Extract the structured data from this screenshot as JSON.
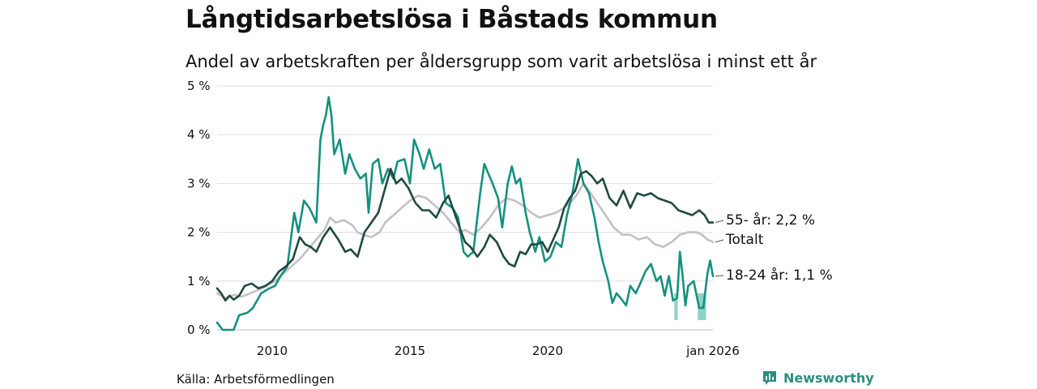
{
  "header": {
    "title": "Långtidsarbetslösa i Båstads kommun",
    "subtitle": "Andel av arbetskraften per åldersgrupp som varit arbetslösa i minst ett år"
  },
  "footer": {
    "source": "Källa: Arbetsförmedlingen",
    "brand": "Newsworthy"
  },
  "colors": {
    "age55": "#1f4a3f",
    "total": "#c4bfcb",
    "age1824": "#14917f",
    "age1824_band": "#8fd1c6",
    "grid": "#dddddd",
    "brand": "#2b8e80"
  },
  "chart_data": {
    "type": "line",
    "title": "Långtidsarbetslösa i Båstads kommun",
    "subtitle": "Andel av arbetskraften per åldersgrupp som varit arbetslösa i minst ett år",
    "xlabel": "",
    "ylabel": "",
    "x_range": [
      2008.0,
      2026.0
    ],
    "ylim": [
      0,
      5
    ],
    "y_ticks": [
      0,
      1,
      2,
      3,
      4,
      5
    ],
    "y_tick_labels": [
      "0 %",
      "1 %",
      "2 %",
      "3 %",
      "4 %",
      "5 %"
    ],
    "x_ticks": [
      2010,
      2015,
      2020,
      2026.0
    ],
    "x_tick_labels": [
      "2010",
      "2015",
      "2020",
      "jan 2026"
    ],
    "grid": true,
    "series": [
      {
        "name": "Totalt",
        "label": "Totalt",
        "color": "#c4bfcb",
        "points": [
          [
            2008.0,
            0.75
          ],
          [
            2008.3,
            0.65
          ],
          [
            2008.6,
            0.72
          ],
          [
            2008.9,
            0.68
          ],
          [
            2009.2,
            0.75
          ],
          [
            2009.5,
            0.82
          ],
          [
            2009.8,
            0.9
          ],
          [
            2010.1,
            1.0
          ],
          [
            2010.4,
            1.15
          ],
          [
            2010.7,
            1.3
          ],
          [
            2011.0,
            1.45
          ],
          [
            2011.3,
            1.65
          ],
          [
            2011.6,
            1.85
          ],
          [
            2011.9,
            2.05
          ],
          [
            2012.1,
            2.3
          ],
          [
            2012.3,
            2.2
          ],
          [
            2012.6,
            2.25
          ],
          [
            2012.9,
            2.15
          ],
          [
            2013.1,
            2.0
          ],
          [
            2013.3,
            1.95
          ],
          [
            2013.6,
            1.9
          ],
          [
            2013.9,
            2.0
          ],
          [
            2014.1,
            2.2
          ],
          [
            2014.4,
            2.35
          ],
          [
            2014.7,
            2.5
          ],
          [
            2015.0,
            2.65
          ],
          [
            2015.3,
            2.75
          ],
          [
            2015.6,
            2.7
          ],
          [
            2015.9,
            2.55
          ],
          [
            2016.2,
            2.4
          ],
          [
            2016.5,
            2.2
          ],
          [
            2016.8,
            2.0
          ],
          [
            2017.0,
            2.05
          ],
          [
            2017.3,
            1.95
          ],
          [
            2017.6,
            2.1
          ],
          [
            2017.9,
            2.3
          ],
          [
            2018.2,
            2.55
          ],
          [
            2018.5,
            2.7
          ],
          [
            2018.8,
            2.65
          ],
          [
            2019.1,
            2.55
          ],
          [
            2019.4,
            2.4
          ],
          [
            2019.7,
            2.3
          ],
          [
            2020.0,
            2.35
          ],
          [
            2020.3,
            2.4
          ],
          [
            2020.6,
            2.5
          ],
          [
            2020.9,
            2.65
          ],
          [
            2021.1,
            2.8
          ],
          [
            2021.3,
            3.0
          ],
          [
            2021.5,
            2.85
          ],
          [
            2021.8,
            2.6
          ],
          [
            2022.1,
            2.35
          ],
          [
            2022.4,
            2.1
          ],
          [
            2022.7,
            1.95
          ],
          [
            2023.0,
            1.95
          ],
          [
            2023.3,
            1.85
          ],
          [
            2023.6,
            1.9
          ],
          [
            2023.9,
            1.75
          ],
          [
            2024.2,
            1.7
          ],
          [
            2024.5,
            1.8
          ],
          [
            2024.8,
            1.95
          ],
          [
            2025.1,
            2.0
          ],
          [
            2025.4,
            2.0
          ],
          [
            2025.6,
            1.95
          ],
          [
            2025.8,
            1.85
          ],
          [
            2026.0,
            1.8
          ]
        ]
      },
      {
        "name": "18-24 år",
        "label": "18-24 år: 1,1 %",
        "color": "#14917f",
        "points": [
          [
            2008.0,
            0.15
          ],
          [
            2008.2,
            0.0
          ],
          [
            2008.6,
            0.0
          ],
          [
            2008.8,
            0.3
          ],
          [
            2009.1,
            0.35
          ],
          [
            2009.3,
            0.45
          ],
          [
            2009.6,
            0.75
          ],
          [
            2009.9,
            0.85
          ],
          [
            2010.1,
            0.9
          ],
          [
            2010.3,
            1.1
          ],
          [
            2010.55,
            1.3
          ],
          [
            2010.8,
            2.4
          ],
          [
            2010.95,
            2.0
          ],
          [
            2011.15,
            2.65
          ],
          [
            2011.35,
            2.5
          ],
          [
            2011.6,
            2.2
          ],
          [
            2011.75,
            3.9
          ],
          [
            2011.85,
            4.2
          ],
          [
            2011.95,
            4.4
          ],
          [
            2012.05,
            4.77
          ],
          [
            2012.15,
            4.4
          ],
          [
            2012.25,
            3.6
          ],
          [
            2012.45,
            3.9
          ],
          [
            2012.65,
            3.2
          ],
          [
            2012.8,
            3.6
          ],
          [
            2013.0,
            3.3
          ],
          [
            2013.2,
            3.1
          ],
          [
            2013.4,
            3.2
          ],
          [
            2013.5,
            2.4
          ],
          [
            2013.65,
            3.4
          ],
          [
            2013.85,
            3.5
          ],
          [
            2014.0,
            3.0
          ],
          [
            2014.2,
            3.3
          ],
          [
            2014.4,
            3.1
          ],
          [
            2014.55,
            3.45
          ],
          [
            2014.8,
            3.5
          ],
          [
            2015.0,
            3.0
          ],
          [
            2015.15,
            3.9
          ],
          [
            2015.35,
            3.6
          ],
          [
            2015.5,
            3.3
          ],
          [
            2015.7,
            3.7
          ],
          [
            2015.9,
            3.3
          ],
          [
            2016.1,
            3.4
          ],
          [
            2016.3,
            2.6
          ],
          [
            2016.55,
            2.5
          ],
          [
            2016.75,
            2.3
          ],
          [
            2016.95,
            1.6
          ],
          [
            2017.1,
            1.5
          ],
          [
            2017.3,
            1.6
          ],
          [
            2017.55,
            2.8
          ],
          [
            2017.7,
            3.4
          ],
          [
            2017.85,
            3.2
          ],
          [
            2018.0,
            3.0
          ],
          [
            2018.2,
            2.7
          ],
          [
            2018.35,
            2.1
          ],
          [
            2018.55,
            3.0
          ],
          [
            2018.7,
            3.35
          ],
          [
            2018.85,
            3.0
          ],
          [
            2019.0,
            3.1
          ],
          [
            2019.2,
            2.4
          ],
          [
            2019.35,
            2.0
          ],
          [
            2019.55,
            1.6
          ],
          [
            2019.7,
            1.9
          ],
          [
            2019.9,
            1.4
          ],
          [
            2020.1,
            1.5
          ],
          [
            2020.3,
            1.8
          ],
          [
            2020.5,
            1.7
          ],
          [
            2020.7,
            2.35
          ],
          [
            2020.9,
            2.8
          ],
          [
            2021.1,
            3.5
          ],
          [
            2021.3,
            3.0
          ],
          [
            2021.5,
            2.8
          ],
          [
            2021.7,
            2.3
          ],
          [
            2021.85,
            1.8
          ],
          [
            2022.0,
            1.4
          ],
          [
            2022.2,
            1.0
          ],
          [
            2022.35,
            0.55
          ],
          [
            2022.5,
            0.75
          ],
          [
            2022.65,
            0.65
          ],
          [
            2022.85,
            0.5
          ],
          [
            2023.0,
            0.9
          ],
          [
            2023.2,
            0.75
          ],
          [
            2023.4,
            1.0
          ],
          [
            2023.55,
            1.2
          ],
          [
            2023.75,
            1.35
          ],
          [
            2023.95,
            1.0
          ],
          [
            2024.1,
            1.1
          ],
          [
            2024.25,
            0.7
          ],
          [
            2024.4,
            1.1
          ],
          [
            2024.55,
            0.6
          ],
          [
            2024.7,
            0.65
          ],
          [
            2024.8,
            1.6
          ],
          [
            2024.9,
            1.1
          ],
          [
            2025.0,
            0.5
          ],
          [
            2025.1,
            0.9
          ],
          [
            2025.3,
            1.0
          ],
          [
            2025.5,
            0.45
          ],
          [
            2025.65,
            0.45
          ],
          [
            2025.8,
            1.15
          ],
          [
            2025.9,
            1.42
          ],
          [
            2026.0,
            1.1
          ]
        ]
      },
      {
        "name": "55- år",
        "label": "55- år: 2,2 %",
        "color": "#1f4a3f",
        "points": [
          [
            2008.0,
            0.85
          ],
          [
            2008.15,
            0.75
          ],
          [
            2008.3,
            0.6
          ],
          [
            2008.45,
            0.7
          ],
          [
            2008.6,
            0.62
          ],
          [
            2008.8,
            0.7
          ],
          [
            2009.0,
            0.9
          ],
          [
            2009.25,
            0.95
          ],
          [
            2009.5,
            0.85
          ],
          [
            2009.75,
            0.9
          ],
          [
            2010.0,
            1.0
          ],
          [
            2010.25,
            1.2
          ],
          [
            2010.5,
            1.3
          ],
          [
            2010.75,
            1.45
          ],
          [
            2011.0,
            1.9
          ],
          [
            2011.2,
            1.75
          ],
          [
            2011.4,
            1.7
          ],
          [
            2011.6,
            1.6
          ],
          [
            2011.85,
            1.9
          ],
          [
            2012.1,
            2.1
          ],
          [
            2012.4,
            1.85
          ],
          [
            2012.65,
            1.6
          ],
          [
            2012.85,
            1.65
          ],
          [
            2013.1,
            1.5
          ],
          [
            2013.35,
            2.0
          ],
          [
            2013.6,
            2.2
          ],
          [
            2013.85,
            2.4
          ],
          [
            2014.05,
            2.8
          ],
          [
            2014.3,
            3.3
          ],
          [
            2014.5,
            3.0
          ],
          [
            2014.7,
            3.1
          ],
          [
            2014.95,
            2.9
          ],
          [
            2015.2,
            2.6
          ],
          [
            2015.45,
            2.45
          ],
          [
            2015.7,
            2.45
          ],
          [
            2015.95,
            2.3
          ],
          [
            2016.2,
            2.6
          ],
          [
            2016.4,
            2.75
          ],
          [
            2016.55,
            2.5
          ],
          [
            2016.8,
            2.1
          ],
          [
            2017.0,
            1.8
          ],
          [
            2017.2,
            1.7
          ],
          [
            2017.45,
            1.5
          ],
          [
            2017.7,
            1.7
          ],
          [
            2017.9,
            1.95
          ],
          [
            2018.15,
            1.8
          ],
          [
            2018.4,
            1.5
          ],
          [
            2018.6,
            1.35
          ],
          [
            2018.8,
            1.3
          ],
          [
            2019.0,
            1.6
          ],
          [
            2019.2,
            1.55
          ],
          [
            2019.4,
            1.75
          ],
          [
            2019.6,
            1.75
          ],
          [
            2019.8,
            1.8
          ],
          [
            2020.0,
            1.6
          ],
          [
            2020.2,
            1.85
          ],
          [
            2020.4,
            2.1
          ],
          [
            2020.6,
            2.5
          ],
          [
            2020.8,
            2.7
          ],
          [
            2021.0,
            2.85
          ],
          [
            2021.2,
            3.2
          ],
          [
            2021.4,
            3.25
          ],
          [
            2021.6,
            3.15
          ],
          [
            2021.8,
            3.0
          ],
          [
            2022.0,
            3.1
          ],
          [
            2022.25,
            2.7
          ],
          [
            2022.5,
            2.55
          ],
          [
            2022.75,
            2.85
          ],
          [
            2023.0,
            2.5
          ],
          [
            2023.25,
            2.8
          ],
          [
            2023.5,
            2.75
          ],
          [
            2023.75,
            2.8
          ],
          [
            2024.0,
            2.7
          ],
          [
            2024.25,
            2.65
          ],
          [
            2024.5,
            2.6
          ],
          [
            2024.75,
            2.45
          ],
          [
            2025.0,
            2.4
          ],
          [
            2025.25,
            2.35
          ],
          [
            2025.5,
            2.45
          ],
          [
            2025.7,
            2.35
          ],
          [
            2025.85,
            2.2
          ],
          [
            2026.0,
            2.2
          ]
        ]
      }
    ],
    "annotations": [
      {
        "type": "uncertainty_band",
        "series": "18-24 år",
        "from": 2024.6,
        "to": 2024.72,
        "low": 0.2,
        "high": 0.75
      },
      {
        "type": "uncertainty_band",
        "series": "18-24 år",
        "from": 2025.45,
        "to": 2025.75,
        "low": 0.2,
        "high": 0.75
      }
    ]
  }
}
